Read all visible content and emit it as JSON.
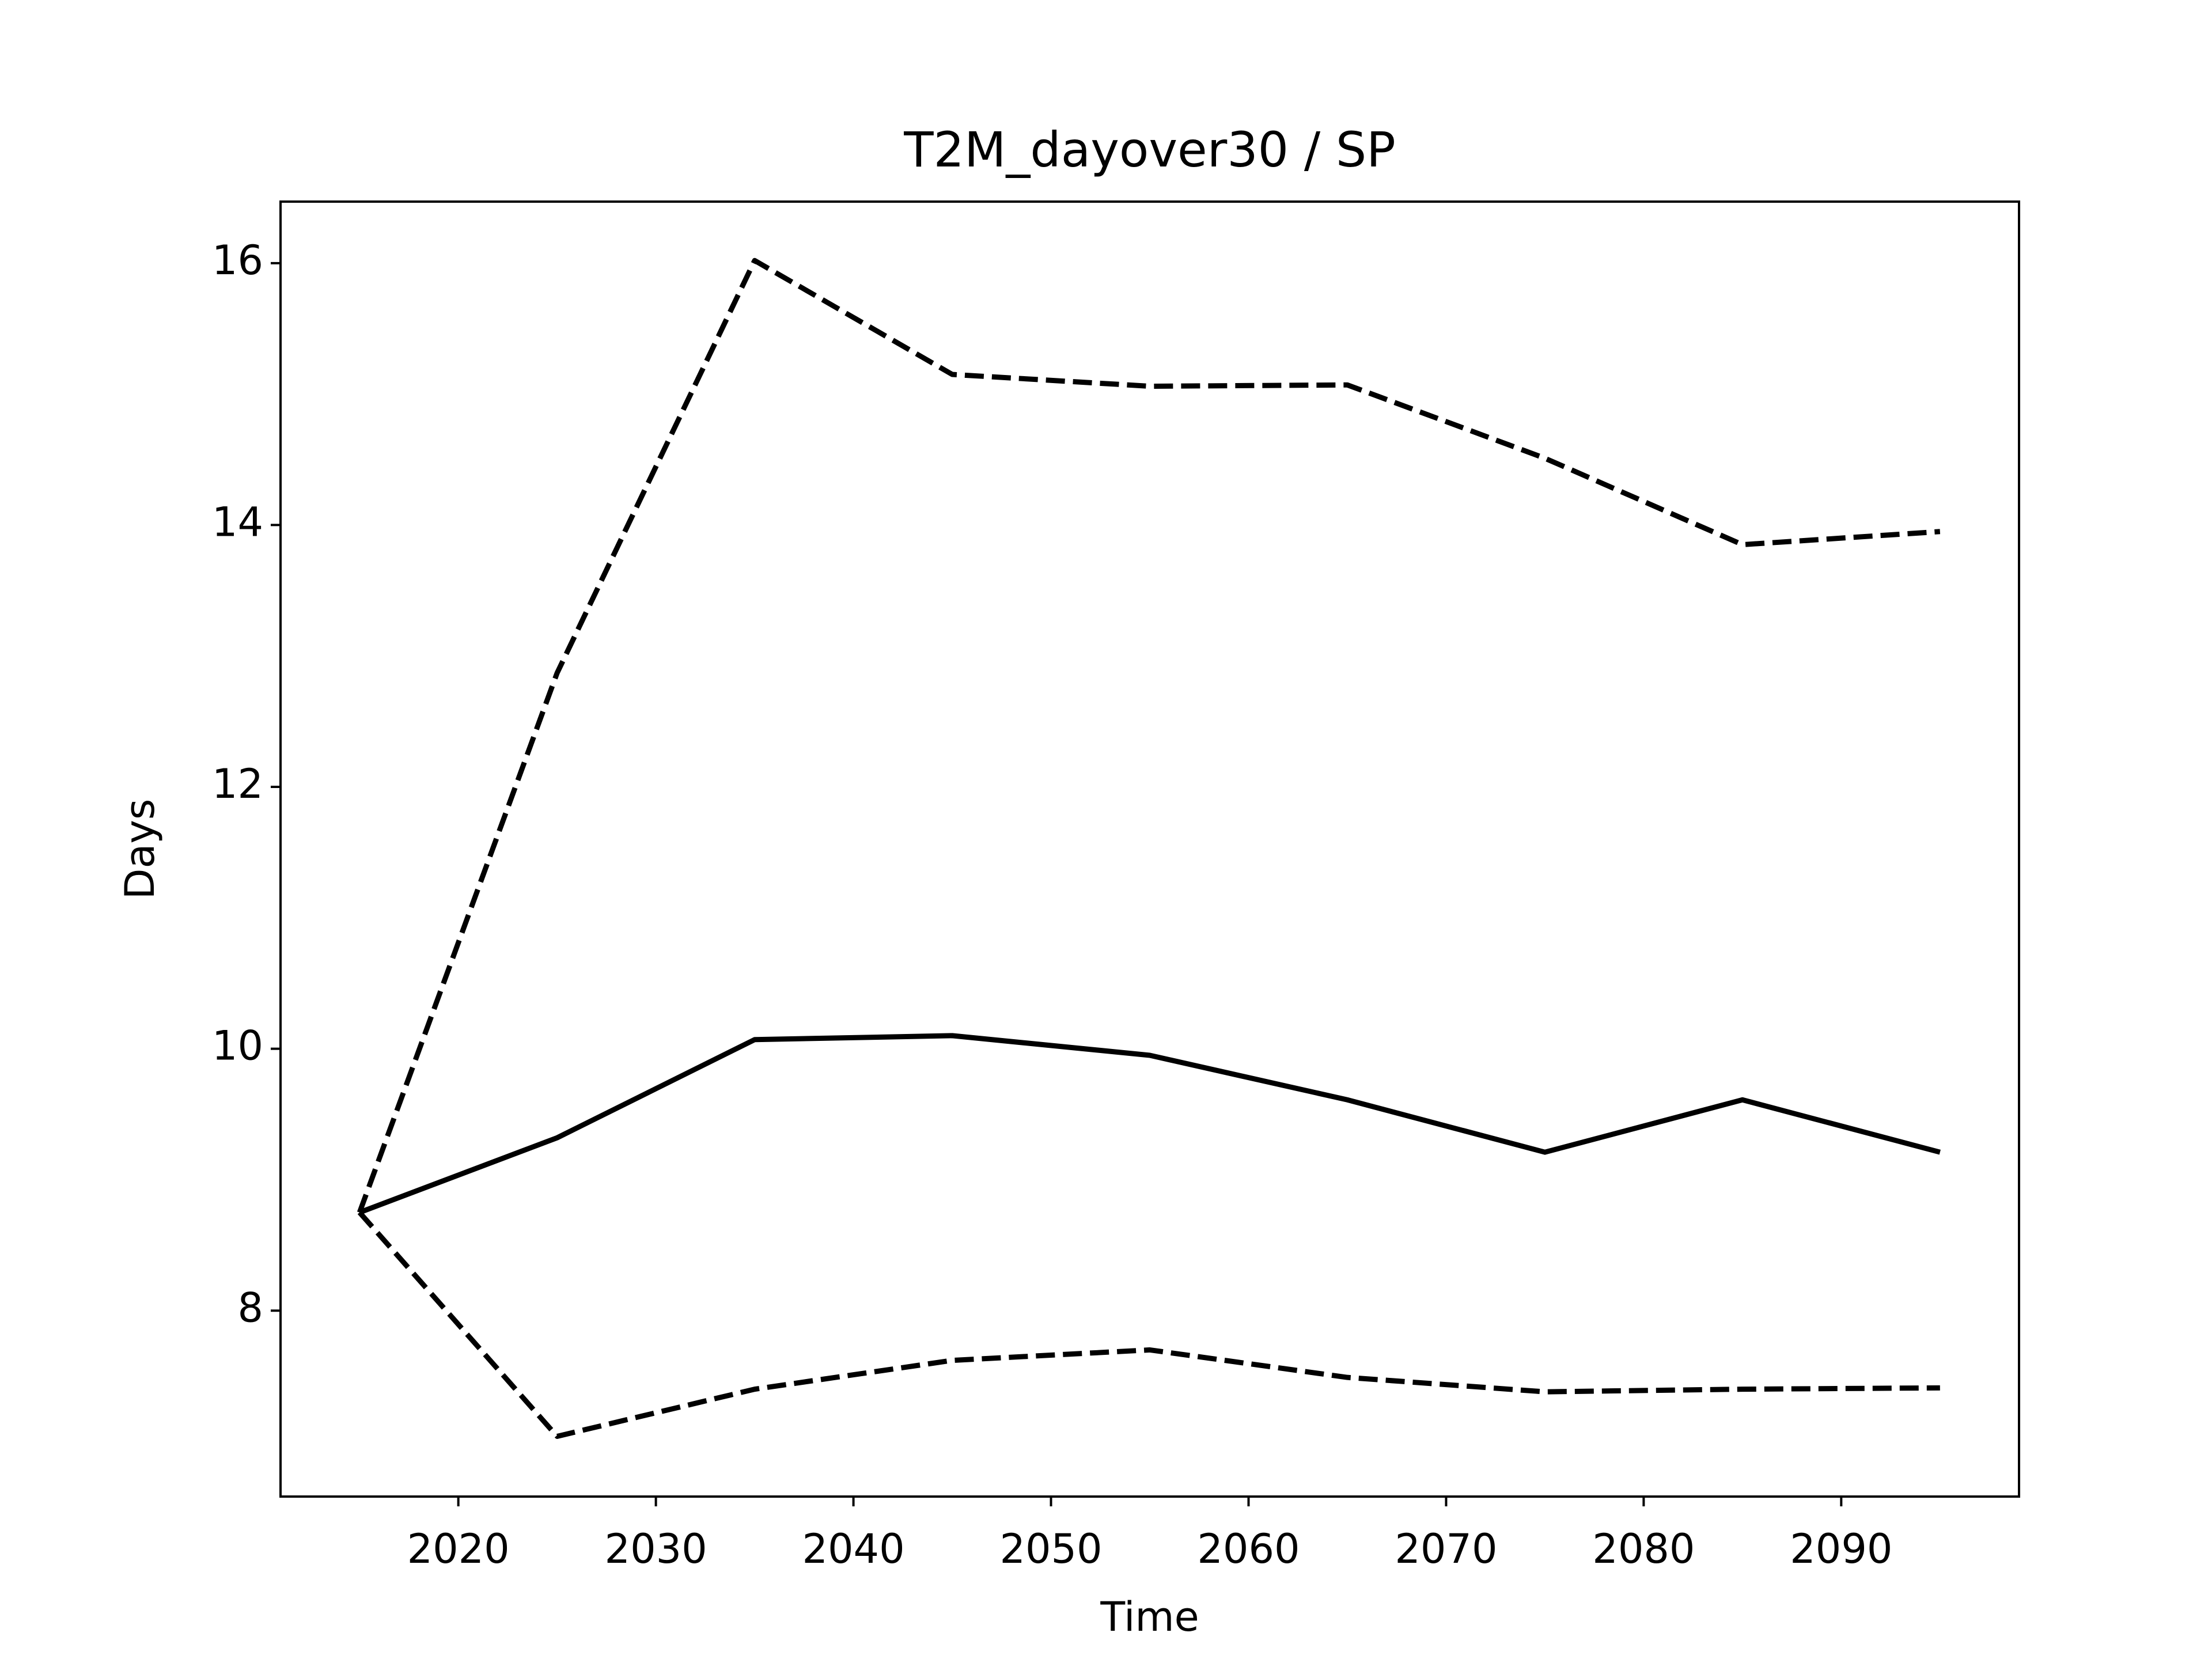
{
  "chart_data": {
    "type": "line",
    "title": "T2M_dayover30 / SP",
    "xlabel": "Time",
    "ylabel": "Days",
    "x": [
      2015,
      2025,
      2035,
      2045,
      2055,
      2065,
      2075,
      2085,
      2095
    ],
    "series": [
      {
        "color": "#000000",
        "linestyle": "solid",
        "values": [
          8.75,
          9.32,
          10.07,
          10.1,
          9.95,
          9.61,
          9.21,
          9.61,
          9.21
        ]
      },
      {
        "color": "#000000",
        "linestyle": "dashed",
        "values": [
          8.75,
          12.87,
          16.02,
          15.15,
          15.06,
          15.07,
          14.51,
          13.85,
          13.95
        ]
      },
      {
        "color": "#000000",
        "linestyle": "dashed",
        "values": [
          8.75,
          7.04,
          7.4,
          7.62,
          7.7,
          7.49,
          7.38,
          7.4,
          7.41
        ]
      }
    ],
    "xlim": [
      2011,
      2099
    ],
    "xticks": [
      2020,
      2030,
      2040,
      2050,
      2060,
      2070,
      2080,
      2090
    ],
    "ylim": [
      6.58,
      16.47
    ],
    "yticks": [
      8,
      10,
      12,
      14,
      16
    ],
    "grid": false
  }
}
